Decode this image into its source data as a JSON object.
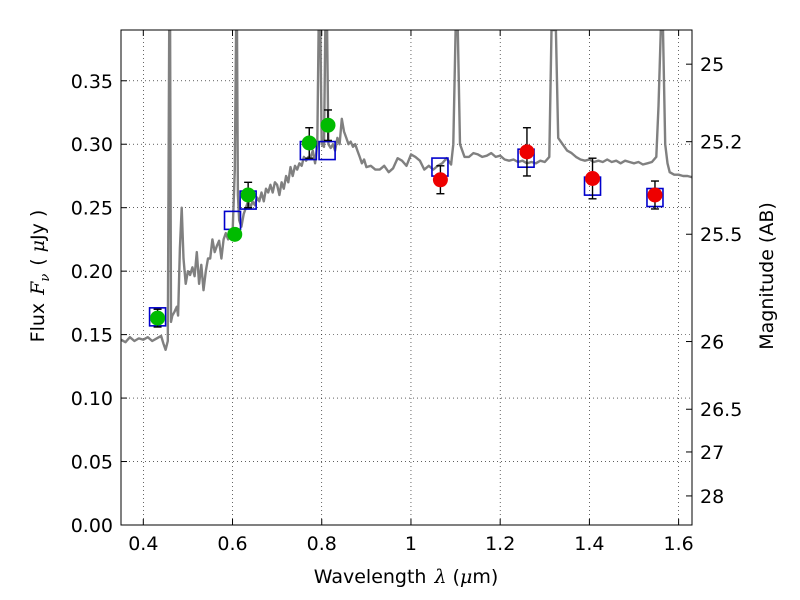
{
  "chart_data": {
    "type": "scatter",
    "xlabel": {
      "text": "Wavelength",
      "symbol": "λ",
      "unit": "(μm)",
      "unit_pre": "(",
      "unit_mu": "μ",
      "unit_post": "m)"
    },
    "ylabel": {
      "text": "Flux",
      "symbol": "F",
      "subscript": "ν",
      "unit": "( μJy )",
      "unit_open": "(",
      "unit_mu": "μ",
      "unit_close": "Jy )"
    },
    "y2label": "Magnitude (AB)",
    "xlim": [
      0.35,
      1.63
    ],
    "ylim": [
      0.0,
      0.39
    ],
    "grid": true,
    "x_ticks": [
      {
        "value": 0.4,
        "label": "0.4"
      },
      {
        "value": 0.6,
        "label": "0.6"
      },
      {
        "value": 0.8,
        "label": "0.8"
      },
      {
        "value": 1.0,
        "label": "1"
      },
      {
        "value": 1.2,
        "label": "1.2"
      },
      {
        "value": 1.4,
        "label": "1.4"
      },
      {
        "value": 1.6,
        "label": "1.6"
      }
    ],
    "y_ticks": [
      {
        "value": 0.0,
        "label": "0.00"
      },
      {
        "value": 0.05,
        "label": "0.05"
      },
      {
        "value": 0.1,
        "label": "0.10"
      },
      {
        "value": 0.15,
        "label": "0.15"
      },
      {
        "value": 0.2,
        "label": "0.20"
      },
      {
        "value": 0.25,
        "label": "0.25"
      },
      {
        "value": 0.3,
        "label": "0.30"
      },
      {
        "value": 0.35,
        "label": "0.35"
      }
    ],
    "y2_ticks": [
      {
        "value": 25.0,
        "label": "25"
      },
      {
        "value": 25.2,
        "label": "25.2"
      },
      {
        "value": 25.5,
        "label": "25.5"
      },
      {
        "value": 26.0,
        "label": "26"
      },
      {
        "value": 26.5,
        "label": "26.5"
      },
      {
        "value": 27.0,
        "label": "27"
      },
      {
        "value": 28.0,
        "label": "28"
      }
    ],
    "model_sed": {
      "color": "#808080",
      "points": [
        [
          0.35,
          0.146
        ],
        [
          0.36,
          0.144
        ],
        [
          0.37,
          0.148
        ],
        [
          0.38,
          0.145
        ],
        [
          0.39,
          0.147
        ],
        [
          0.4,
          0.146
        ],
        [
          0.41,
          0.148
        ],
        [
          0.42,
          0.145
        ],
        [
          0.43,
          0.147
        ],
        [
          0.44,
          0.149
        ],
        [
          0.445,
          0.143
        ],
        [
          0.45,
          0.138
        ],
        [
          0.455,
          0.145
        ],
        [
          0.458,
          0.39
        ],
        [
          0.46,
          0.39
        ],
        [
          0.462,
          0.16
        ],
        [
          0.465,
          0.165
        ],
        [
          0.47,
          0.168
        ],
        [
          0.475,
          0.172
        ],
        [
          0.478,
          0.165
        ],
        [
          0.482,
          0.218
        ],
        [
          0.486,
          0.25
        ],
        [
          0.49,
          0.21
        ],
        [
          0.495,
          0.19
        ],
        [
          0.5,
          0.2
        ],
        [
          0.505,
          0.197
        ],
        [
          0.51,
          0.203
        ],
        [
          0.515,
          0.196
        ],
        [
          0.52,
          0.215
        ],
        [
          0.525,
          0.19
        ],
        [
          0.53,
          0.205
        ],
        [
          0.535,
          0.185
        ],
        [
          0.54,
          0.2
        ],
        [
          0.545,
          0.21
        ],
        [
          0.55,
          0.21
        ],
        [
          0.555,
          0.225
        ],
        [
          0.56,
          0.215
        ],
        [
          0.565,
          0.22
        ],
        [
          0.57,
          0.224
        ],
        [
          0.575,
          0.21
        ],
        [
          0.58,
          0.225
        ],
        [
          0.585,
          0.23
        ],
        [
          0.59,
          0.225
        ],
        [
          0.595,
          0.232
        ],
        [
          0.6,
          0.228
        ],
        [
          0.605,
          0.28
        ],
        [
          0.608,
          0.39
        ],
        [
          0.61,
          0.39
        ],
        [
          0.612,
          0.26
        ],
        [
          0.615,
          0.24
        ],
        [
          0.62,
          0.235
        ],
        [
          0.625,
          0.245
        ],
        [
          0.63,
          0.25
        ],
        [
          0.635,
          0.255
        ],
        [
          0.64,
          0.25
        ],
        [
          0.645,
          0.255
        ],
        [
          0.65,
          0.252
        ],
        [
          0.655,
          0.258
        ],
        [
          0.66,
          0.255
        ],
        [
          0.665,
          0.262
        ],
        [
          0.67,
          0.255
        ],
        [
          0.675,
          0.265
        ],
        [
          0.68,
          0.262
        ],
        [
          0.685,
          0.268
        ],
        [
          0.69,
          0.262
        ],
        [
          0.695,
          0.27
        ],
        [
          0.7,
          0.268
        ],
        [
          0.705,
          0.26
        ],
        [
          0.71,
          0.27
        ],
        [
          0.715,
          0.265
        ],
        [
          0.72,
          0.275
        ],
        [
          0.725,
          0.27
        ],
        [
          0.73,
          0.282
        ],
        [
          0.735,
          0.275
        ],
        [
          0.74,
          0.283
        ],
        [
          0.745,
          0.28
        ],
        [
          0.75,
          0.285
        ],
        [
          0.755,
          0.283
        ],
        [
          0.76,
          0.29
        ],
        [
          0.765,
          0.287
        ],
        [
          0.77,
          0.29
        ],
        [
          0.775,
          0.29
        ],
        [
          0.78,
          0.295
        ],
        [
          0.785,
          0.285
        ],
        [
          0.79,
          0.3
        ],
        [
          0.793,
          0.39
        ],
        [
          0.797,
          0.39
        ],
        [
          0.8,
          0.3
        ],
        [
          0.805,
          0.298
        ],
        [
          0.808,
          0.39
        ],
        [
          0.812,
          0.39
        ],
        [
          0.815,
          0.3
        ],
        [
          0.82,
          0.297
        ],
        [
          0.825,
          0.3
        ],
        [
          0.83,
          0.295
        ],
        [
          0.835,
          0.305
        ],
        [
          0.84,
          0.3
        ],
        [
          0.845,
          0.32
        ],
        [
          0.85,
          0.31
        ],
        [
          0.855,
          0.305
        ],
        [
          0.86,
          0.3
        ],
        [
          0.865,
          0.302
        ],
        [
          0.87,
          0.298
        ],
        [
          0.875,
          0.3
        ],
        [
          0.88,
          0.295
        ],
        [
          0.885,
          0.29
        ],
        [
          0.89,
          0.285
        ],
        [
          0.895,
          0.288
        ],
        [
          0.9,
          0.282
        ],
        [
          0.91,
          0.283
        ],
        [
          0.92,
          0.28
        ],
        [
          0.93,
          0.28
        ],
        [
          0.94,
          0.283
        ],
        [
          0.95,
          0.278
        ],
        [
          0.96,
          0.281
        ],
        [
          0.97,
          0.289
        ],
        [
          0.98,
          0.287
        ],
        [
          0.99,
          0.283
        ],
        [
          1.0,
          0.292
        ],
        [
          1.01,
          0.29
        ],
        [
          1.02,
          0.287
        ],
        [
          1.03,
          0.28
        ],
        [
          1.04,
          0.283
        ],
        [
          1.05,
          0.28
        ],
        [
          1.06,
          0.283
        ],
        [
          1.07,
          0.285
        ],
        [
          1.08,
          0.289
        ],
        [
          1.09,
          0.284
        ],
        [
          1.095,
          0.3
        ],
        [
          1.1,
          0.39
        ],
        [
          1.105,
          0.39
        ],
        [
          1.11,
          0.3
        ],
        [
          1.12,
          0.29
        ],
        [
          1.13,
          0.29
        ],
        [
          1.14,
          0.293
        ],
        [
          1.15,
          0.292
        ],
        [
          1.16,
          0.29
        ],
        [
          1.17,
          0.291
        ],
        [
          1.18,
          0.293
        ],
        [
          1.19,
          0.29
        ],
        [
          1.2,
          0.291
        ],
        [
          1.21,
          0.288
        ],
        [
          1.22,
          0.287
        ],
        [
          1.23,
          0.288
        ],
        [
          1.24,
          0.286
        ],
        [
          1.25,
          0.287
        ],
        [
          1.26,
          0.285
        ],
        [
          1.27,
          0.286
        ],
        [
          1.28,
          0.285
        ],
        [
          1.29,
          0.287
        ],
        [
          1.3,
          0.286
        ],
        [
          1.31,
          0.29
        ],
        [
          1.315,
          0.39
        ],
        [
          1.325,
          0.39
        ],
        [
          1.33,
          0.305
        ],
        [
          1.34,
          0.3
        ],
        [
          1.35,
          0.295
        ],
        [
          1.36,
          0.293
        ],
        [
          1.37,
          0.29
        ],
        [
          1.38,
          0.288
        ],
        [
          1.39,
          0.287
        ],
        [
          1.4,
          0.288
        ],
        [
          1.41,
          0.286
        ],
        [
          1.42,
          0.287
        ],
        [
          1.43,
          0.286
        ],
        [
          1.44,
          0.288
        ],
        [
          1.45,
          0.286
        ],
        [
          1.46,
          0.287
        ],
        [
          1.47,
          0.285
        ],
        [
          1.48,
          0.287
        ],
        [
          1.49,
          0.286
        ],
        [
          1.5,
          0.285
        ],
        [
          1.51,
          0.286
        ],
        [
          1.52,
          0.284
        ],
        [
          1.53,
          0.285
        ],
        [
          1.54,
          0.286
        ],
        [
          1.55,
          0.29
        ],
        [
          1.555,
          0.33
        ],
        [
          1.56,
          0.39
        ],
        [
          1.565,
          0.39
        ],
        [
          1.57,
          0.3
        ],
        [
          1.575,
          0.285
        ],
        [
          1.58,
          0.278
        ],
        [
          1.59,
          0.276
        ],
        [
          1.6,
          0.276
        ],
        [
          1.61,
          0.275
        ],
        [
          1.62,
          0.275
        ],
        [
          1.63,
          0.274
        ]
      ]
    },
    "model_photometry": {
      "color": "#0000cc",
      "points": [
        [
          0.432,
          0.164
        ],
        [
          0.6,
          0.24
        ],
        [
          0.635,
          0.256
        ],
        [
          0.77,
          0.295
        ],
        [
          0.812,
          0.295
        ],
        [
          1.065,
          0.282
        ],
        [
          1.258,
          0.289
        ],
        [
          1.407,
          0.267
        ],
        [
          1.547,
          0.258
        ]
      ]
    },
    "observed": [
      {
        "x": 0.432,
        "y": 0.163,
        "err": 0.007,
        "color": "#00bb00"
      },
      {
        "x": 0.605,
        "y": 0.229,
        "err": 0.0,
        "color": "#00bb00"
      },
      {
        "x": 0.635,
        "y": 0.26,
        "err": 0.01,
        "color": "#00bb00"
      },
      {
        "x": 0.772,
        "y": 0.301,
        "err": 0.012,
        "color": "#00bb00"
      },
      {
        "x": 0.814,
        "y": 0.315,
        "err": 0.012,
        "color": "#00bb00"
      },
      {
        "x": 1.066,
        "y": 0.272,
        "err": 0.011,
        "color": "#ee0000"
      },
      {
        "x": 1.26,
        "y": 0.294,
        "err": 0.019,
        "color": "#ee0000"
      },
      {
        "x": 1.407,
        "y": 0.273,
        "err": 0.016,
        "color": "#ee0000"
      },
      {
        "x": 1.547,
        "y": 0.26,
        "err": 0.011,
        "color": "#ee0000"
      }
    ]
  }
}
